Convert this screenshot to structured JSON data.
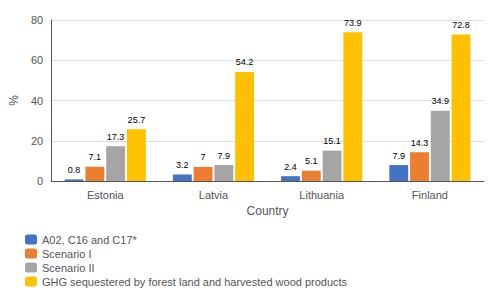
{
  "chart_data": {
    "type": "bar",
    "categories": [
      "Estonia",
      "Latvia",
      "Lithuania",
      "Finland"
    ],
    "series": [
      {
        "name": "A02, C16 and C17*",
        "color": "#4472C4",
        "values": [
          0.8,
          3.2,
          2.4,
          7.9
        ]
      },
      {
        "name": "Scenario I",
        "color": "#ED7D31",
        "values": [
          7.1,
          7.0,
          5.1,
          14.3
        ]
      },
      {
        "name": "Scenario II",
        "color": "#A5A5A5",
        "values": [
          17.3,
          7.9,
          15.1,
          34.9
        ]
      },
      {
        "name": "GHG sequestered by forest land and harvested wood products",
        "color": "#FFC000",
        "values": [
          25.7,
          54.2,
          73.9,
          72.8
        ]
      }
    ],
    "xlabel": "Country",
    "ylabel": "%",
    "ylim": [
      0,
      80
    ],
    "yticks": [
      0,
      20,
      40,
      60,
      80
    ],
    "grid": true,
    "legend": "bottom",
    "data_labels": true
  }
}
